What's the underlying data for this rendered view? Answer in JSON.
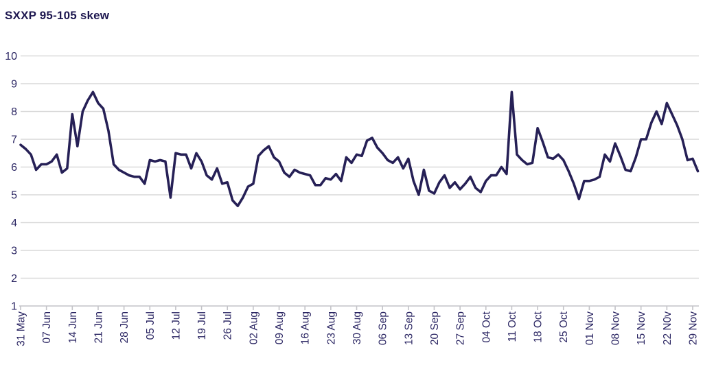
{
  "title": "SXXP 95-105 skew",
  "colors": {
    "line": "#262056",
    "title_text": "#1e1850",
    "tick_text": "#2b2663",
    "grid": "#d9d9d9",
    "axis": "#c3c3c8",
    "background": "#ffffff"
  },
  "chart_data": {
    "type": "line",
    "title": "SXXP 95-105 skew",
    "xlabel": "",
    "ylabel": "",
    "ylim": [
      1,
      10
    ],
    "y_ticks": [
      1,
      2,
      3,
      4,
      5,
      6,
      7,
      8,
      9,
      10
    ],
    "grid": "horizontal-only",
    "legend": "none",
    "x_tick_labels": [
      "31 May",
      "07 Jun",
      "14 Jun",
      "21 Jun",
      "28 Jun",
      "05 Jul",
      "12 Jul",
      "19 Jul",
      "26 Jul",
      "02 Aug",
      "09 Aug",
      "16 Aug",
      "23 Aug",
      "30 Aug",
      "06 Sep",
      "13 Sep",
      "20 Sep",
      "27 Sep",
      "04 Oct",
      "11 Oct",
      "18 Oct",
      "25 Oct",
      "01 Nov",
      "08 Nov",
      "15 Nov",
      "22 N0v",
      "29 Nov"
    ],
    "points_per_tick_interval": 5,
    "series": [
      {
        "name": "SXXP 95-105 skew",
        "values": [
          6.8,
          6.65,
          6.45,
          5.9,
          6.1,
          6.1,
          6.2,
          6.45,
          5.8,
          5.95,
          7.9,
          6.75,
          8.0,
          8.4,
          8.7,
          8.3,
          8.1,
          7.3,
          6.1,
          5.9,
          5.8,
          5.7,
          5.65,
          5.65,
          5.4,
          6.25,
          6.2,
          6.25,
          6.2,
          4.9,
          6.5,
          6.45,
          6.45,
          5.95,
          6.5,
          6.2,
          5.7,
          5.55,
          5.95,
          5.4,
          5.45,
          4.8,
          4.6,
          4.9,
          5.3,
          5.4,
          6.4,
          6.6,
          6.75,
          6.35,
          6.2,
          5.8,
          5.65,
          5.9,
          5.8,
          5.75,
          5.7,
          5.35,
          5.35,
          5.6,
          5.55,
          5.75,
          5.5,
          6.35,
          6.15,
          6.45,
          6.4,
          6.95,
          7.05,
          6.7,
          6.5,
          6.25,
          6.15,
          6.35,
          5.95,
          6.3,
          5.5,
          5.0,
          5.9,
          5.15,
          5.05,
          5.45,
          5.7,
          5.25,
          5.45,
          5.2,
          5.4,
          5.65,
          5.25,
          5.1,
          5.5,
          5.7,
          5.7,
          6.0,
          5.75,
          8.7,
          6.45,
          6.25,
          6.1,
          6.15,
          7.4,
          6.9,
          6.35,
          6.3,
          6.45,
          6.25,
          5.85,
          5.4,
          4.85,
          5.5,
          5.5,
          5.55,
          5.65,
          6.45,
          6.2,
          6.85,
          6.4,
          5.9,
          5.85,
          6.35,
          7.0,
          7.0,
          7.6,
          8.0,
          7.55,
          8.3,
          7.9,
          7.5,
          7.0,
          6.25,
          6.3,
          5.85
        ]
      }
    ]
  }
}
